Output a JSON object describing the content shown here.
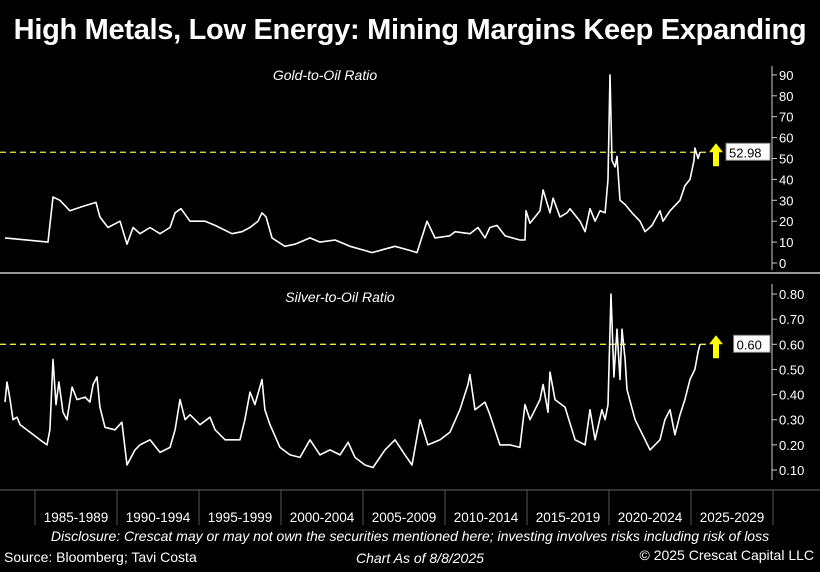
{
  "title": "High Metals, Low Energy: Mining Margins Keep Expanding",
  "footer": {
    "disclosure": "Disclosure: Crescat may or may not own the securities mentioned here; investing involves risks including risk of loss",
    "source": "Source: Bloomberg; Tavi Costa",
    "as_of": "Chart As of 8/8/2025",
    "copyright": "© 2025 Crescat Capital LLC"
  },
  "colors": {
    "background": "#000000",
    "line": "#ffffff",
    "reference": "#e6f03c",
    "arrow": "#ffff00"
  },
  "chart_data": [
    {
      "type": "line",
      "title": "Gold-to-Oil Ratio",
      "ylim": [
        0,
        90
      ],
      "yticks": [
        "0",
        "10",
        "20",
        "30",
        "40",
        "50",
        "60",
        "70",
        "80",
        "90"
      ],
      "axis_side": "right",
      "grid": false,
      "current_value_label": "52.98",
      "reference_line": 52.98,
      "arrow": "up",
      "x_categories": [
        "1985-1989",
        "1990-1994",
        "1995-1999",
        "2000-2004",
        "2005-2009",
        "2010-2014",
        "2015-2019",
        "2020-2024",
        "2025-2029"
      ],
      "points": [
        [
          1983.17,
          12
        ],
        [
          1985.79,
          10
        ],
        [
          1986.1,
          31.6
        ],
        [
          1986.52,
          30
        ],
        [
          1987.13,
          25
        ],
        [
          1987.87,
          27
        ],
        [
          1988.72,
          29
        ],
        [
          1988.96,
          22
        ],
        [
          1989.45,
          17
        ],
        [
          1990.18,
          20
        ],
        [
          1990.61,
          9
        ],
        [
          1990.98,
          17
        ],
        [
          1991.4,
          14
        ],
        [
          1992.01,
          17
        ],
        [
          1992.62,
          14
        ],
        [
          1993.23,
          17
        ],
        [
          1993.54,
          24
        ],
        [
          1993.9,
          26
        ],
        [
          1994.45,
          20
        ],
        [
          1995.37,
          20
        ],
        [
          1995.98,
          18
        ],
        [
          1997.01,
          14
        ],
        [
          1997.62,
          15
        ],
        [
          1998.11,
          17
        ],
        [
          1998.6,
          20
        ],
        [
          1998.84,
          24
        ],
        [
          1999.09,
          22
        ],
        [
          1999.45,
          12
        ],
        [
          2000.24,
          8
        ],
        [
          2000.85,
          9
        ],
        [
          2001.77,
          12
        ],
        [
          2002.38,
          10
        ],
        [
          2003.29,
          11
        ],
        [
          2004.21,
          8
        ],
        [
          2005.12,
          6
        ],
        [
          2005.55,
          5
        ],
        [
          2006.95,
          8
        ],
        [
          2007.87,
          6
        ],
        [
          2008.29,
          5
        ],
        [
          2008.9,
          20
        ],
        [
          2009.39,
          12
        ],
        [
          2010.3,
          13
        ],
        [
          2010.61,
          15
        ],
        [
          2011.52,
          14
        ],
        [
          2012.01,
          17
        ],
        [
          2012.44,
          12
        ],
        [
          2012.74,
          17
        ],
        [
          2013.17,
          18
        ],
        [
          2013.66,
          13
        ],
        [
          2014.57,
          11
        ],
        [
          2014.88,
          11
        ],
        [
          2014.94,
          25
        ],
        [
          2015.18,
          19
        ],
        [
          2015.79,
          25
        ],
        [
          2015.98,
          35
        ],
        [
          2016.4,
          24
        ],
        [
          2016.59,
          31
        ],
        [
          2017.01,
          22
        ],
        [
          2017.44,
          24
        ],
        [
          2017.62,
          26
        ],
        [
          2018.23,
          20
        ],
        [
          2018.54,
          15
        ],
        [
          2018.84,
          26
        ],
        [
          2019.15,
          20
        ],
        [
          2019.45,
          25
        ],
        [
          2019.76,
          24
        ],
        [
          2019.94,
          40
        ],
        [
          2020.06,
          90
        ],
        [
          2020.18,
          49
        ],
        [
          2020.37,
          46
        ],
        [
          2020.49,
          51
        ],
        [
          2020.67,
          30
        ],
        [
          2020.98,
          28
        ],
        [
          2021.4,
          24
        ],
        [
          2021.89,
          20
        ],
        [
          2022.2,
          15
        ],
        [
          2022.62,
          18
        ],
        [
          2023.11,
          25
        ],
        [
          2023.29,
          20
        ],
        [
          2023.72,
          25
        ],
        [
          2024.33,
          30
        ],
        [
          2024.63,
          37
        ],
        [
          2024.94,
          40
        ],
        [
          2025.18,
          49
        ],
        [
          2025.24,
          55
        ],
        [
          2025.43,
          50
        ],
        [
          2025.55,
          53
        ]
      ]
    },
    {
      "type": "line",
      "title": "Silver-to-Oil Ratio",
      "ylim": [
        0.05,
        0.85
      ],
      "yticks": [
        "0.10",
        "0.20",
        "0.30",
        "0.40",
        "0.50",
        "0.60",
        "0.70",
        "0.80"
      ],
      "axis_side": "right",
      "grid": false,
      "current_value_label": "0.60",
      "reference_line": 0.6,
      "arrow": "up",
      "points": [
        [
          1983.17,
          0.37
        ],
        [
          1983.29,
          0.45
        ],
        [
          1983.48,
          0.38
        ],
        [
          1983.66,
          0.3
        ],
        [
          1983.9,
          0.31
        ],
        [
          1984.09,
          0.28
        ],
        [
          1984.7,
          0.25
        ],
        [
          1985.3,
          0.22
        ],
        [
          1985.73,
          0.2
        ],
        [
          1985.91,
          0.26
        ],
        [
          1986.1,
          0.54
        ],
        [
          1986.28,
          0.36
        ],
        [
          1986.46,
          0.45
        ],
        [
          1986.71,
          0.33
        ],
        [
          1986.95,
          0.3
        ],
        [
          1987.26,
          0.43
        ],
        [
          1987.56,
          0.38
        ],
        [
          1988.05,
          0.39
        ],
        [
          1988.35,
          0.37
        ],
        [
          1988.54,
          0.44
        ],
        [
          1988.78,
          0.47
        ],
        [
          1988.96,
          0.35
        ],
        [
          1989.27,
          0.27
        ],
        [
          1989.88,
          0.26
        ],
        [
          1990.3,
          0.29
        ],
        [
          1990.61,
          0.12
        ],
        [
          1991.1,
          0.18
        ],
        [
          1991.4,
          0.2
        ],
        [
          1992.01,
          0.22
        ],
        [
          1992.62,
          0.17
        ],
        [
          1993.23,
          0.19
        ],
        [
          1993.54,
          0.26
        ],
        [
          1993.84,
          0.38
        ],
        [
          1994.15,
          0.3
        ],
        [
          1994.45,
          0.32
        ],
        [
          1995.06,
          0.28
        ],
        [
          1995.67,
          0.31
        ],
        [
          1995.98,
          0.26
        ],
        [
          1996.59,
          0.22
        ],
        [
          1997.5,
          0.22
        ],
        [
          1997.8,
          0.3
        ],
        [
          1998.11,
          0.41
        ],
        [
          1998.41,
          0.36
        ],
        [
          1998.84,
          0.46
        ],
        [
          1999.02,
          0.34
        ],
        [
          1999.33,
          0.28
        ],
        [
          1999.94,
          0.19
        ],
        [
          2000.55,
          0.16
        ],
        [
          2001.16,
          0.15
        ],
        [
          2001.77,
          0.22
        ],
        [
          2002.38,
          0.16
        ],
        [
          2002.99,
          0.18
        ],
        [
          2003.6,
          0.16
        ],
        [
          2004.09,
          0.21
        ],
        [
          2004.51,
          0.15
        ],
        [
          2005.12,
          0.12
        ],
        [
          2005.61,
          0.11
        ],
        [
          2006.34,
          0.18
        ],
        [
          2006.95,
          0.22
        ],
        [
          2007.56,
          0.16
        ],
        [
          2007.99,
          0.12
        ],
        [
          2008.48,
          0.3
        ],
        [
          2008.96,
          0.2
        ],
        [
          2009.7,
          0.22
        ],
        [
          2010.3,
          0.25
        ],
        [
          2010.91,
          0.34
        ],
        [
          2011.4,
          0.44
        ],
        [
          2011.52,
          0.48
        ],
        [
          2011.83,
          0.34
        ],
        [
          2012.44,
          0.37
        ],
        [
          2012.74,
          0.32
        ],
        [
          2013.35,
          0.2
        ],
        [
          2013.96,
          0.2
        ],
        [
          2014.57,
          0.19
        ],
        [
          2014.88,
          0.36
        ],
        [
          2015.18,
          0.3
        ],
        [
          2015.79,
          0.38
        ],
        [
          2015.98,
          0.44
        ],
        [
          2016.28,
          0.33
        ],
        [
          2016.4,
          0.49
        ],
        [
          2016.71,
          0.38
        ],
        [
          2017.32,
          0.35
        ],
        [
          2017.93,
          0.22
        ],
        [
          2018.54,
          0.2
        ],
        [
          2018.84,
          0.34
        ],
        [
          2019.15,
          0.22
        ],
        [
          2019.57,
          0.34
        ],
        [
          2019.76,
          0.3
        ],
        [
          2019.94,
          0.36
        ],
        [
          2020.12,
          0.8
        ],
        [
          2020.3,
          0.47
        ],
        [
          2020.49,
          0.66
        ],
        [
          2020.67,
          0.46
        ],
        [
          2020.79,
          0.66
        ],
        [
          2020.98,
          0.54
        ],
        [
          2021.1,
          0.42
        ],
        [
          2021.59,
          0.3
        ],
        [
          2022.2,
          0.22
        ],
        [
          2022.5,
          0.18
        ],
        [
          2023.11,
          0.22
        ],
        [
          2023.41,
          0.3
        ],
        [
          2023.72,
          0.34
        ],
        [
          2024.02,
          0.24
        ],
        [
          2024.33,
          0.32
        ],
        [
          2024.63,
          0.38
        ],
        [
          2024.94,
          0.46
        ],
        [
          2025.24,
          0.5
        ],
        [
          2025.43,
          0.57
        ],
        [
          2025.55,
          0.6
        ]
      ]
    }
  ]
}
